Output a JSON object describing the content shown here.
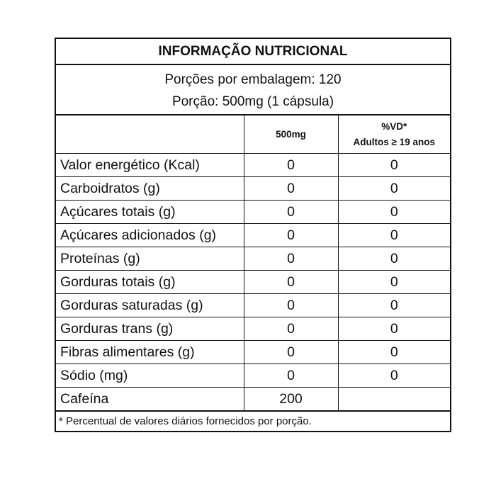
{
  "title": "INFORMAÇÃO NUTRICIONAL",
  "servings_per_package": "Porções por embalagem: 120",
  "serving_size": "Porção: 500mg (1 cápsula)",
  "header": {
    "col1": "",
    "col2": "500mg",
    "col3_line1": "%VD*",
    "col3_line2": "Adultos ≥ 19 anos"
  },
  "rows": [
    {
      "name": "Valor energético (Kcal)",
      "amount": "0",
      "dv": "0"
    },
    {
      "name": "Carboidratos (g)",
      "amount": "0",
      "dv": "0"
    },
    {
      "name": "Açúcares totais (g)",
      "amount": "0",
      "dv": "0"
    },
    {
      "name": "Açúcares adicionados (g)",
      "amount": "0",
      "dv": "0"
    },
    {
      "name": "Proteínas (g)",
      "amount": "0",
      "dv": "0"
    },
    {
      "name": "Gorduras totais (g)",
      "amount": "0",
      "dv": "0"
    },
    {
      "name": "Gorduras saturadas (g)",
      "amount": "0",
      "dv": "0"
    },
    {
      "name": "Gorduras trans (g)",
      "amount": "0",
      "dv": "0"
    },
    {
      "name": "Fibras alimentares (g)",
      "amount": "0",
      "dv": "0"
    },
    {
      "name": "Sódio (mg)",
      "amount": "0",
      "dv": "0"
    },
    {
      "name": "Cafeína",
      "amount": "200",
      "dv": ""
    }
  ],
  "footnote": "* Percentual de valores diários fornecidos por porção."
}
